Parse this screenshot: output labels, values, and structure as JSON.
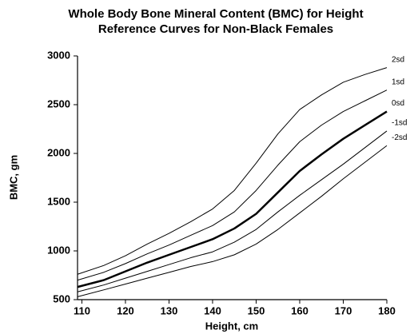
{
  "chart_data": {
    "type": "line",
    "title": "Whole Body Bone Mineral Content (BMC) for Height",
    "subtitle": "Reference Curves for Non-Black Females",
    "x_label": "Height, cm",
    "y_label": "BMC, gm",
    "x": [
      109,
      115,
      120,
      125,
      130,
      135,
      140,
      145,
      150,
      155,
      160,
      165,
      170,
      175,
      180
    ],
    "series": [
      {
        "name": "2sd",
        "color": "#000000",
        "line_width": 1,
        "values": [
          760,
          850,
          950,
          1070,
          1180,
          1300,
          1430,
          1620,
          1900,
          2200,
          2450,
          2600,
          2730,
          2810,
          2880
        ]
      },
      {
        "name": "1sd",
        "color": "#000000",
        "line_width": 1,
        "values": [
          700,
          780,
          870,
          970,
          1060,
          1160,
          1260,
          1400,
          1620,
          1880,
          2120,
          2290,
          2430,
          2540,
          2650
        ]
      },
      {
        "name": "0sd",
        "color": "#000000",
        "line_width": 2.5,
        "values": [
          630,
          700,
          790,
          880,
          960,
          1040,
          1120,
          1230,
          1380,
          1600,
          1820,
          1990,
          2150,
          2290,
          2430
        ]
      },
      {
        "name": "-1sd",
        "color": "#000000",
        "line_width": 1,
        "values": [
          580,
          650,
          720,
          790,
          860,
          930,
          990,
          1090,
          1220,
          1400,
          1570,
          1730,
          1890,
          2060,
          2230
        ]
      },
      {
        "name": "-2sd",
        "color": "#000000",
        "line_width": 1,
        "values": [
          530,
          600,
          660,
          720,
          780,
          840,
          890,
          960,
          1070,
          1220,
          1390,
          1560,
          1740,
          1910,
          2080
        ]
      }
    ],
    "xlim": [
      109,
      180
    ],
    "xticks": [
      110,
      120,
      130,
      140,
      150,
      160,
      170,
      180
    ],
    "ylim": [
      500,
      3000
    ],
    "yticks": [
      500,
      1000,
      1500,
      2000,
      2500,
      3000
    ],
    "grid": false
  }
}
